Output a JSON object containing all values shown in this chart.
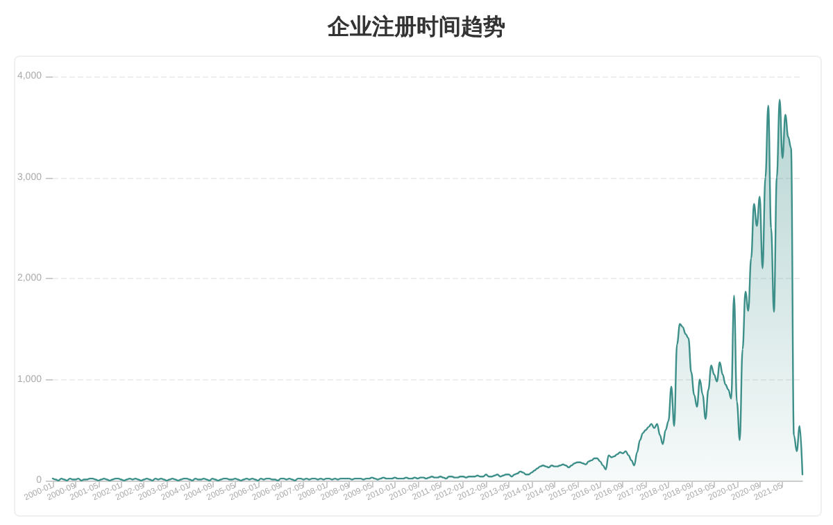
{
  "chart_data": {
    "type": "area",
    "title": "企业注册时间趋势",
    "categories": [
      "2000-01",
      null,
      null,
      null,
      null,
      null,
      null,
      null,
      "2000-09",
      null,
      null,
      null,
      null,
      null,
      null,
      null,
      "2001-05",
      null,
      null,
      null,
      null,
      null,
      null,
      null,
      "2002-01",
      null,
      null,
      null,
      null,
      null,
      null,
      null,
      "2002-09",
      null,
      null,
      null,
      null,
      null,
      null,
      null,
      "2003-05",
      null,
      null,
      null,
      null,
      null,
      null,
      null,
      "2004-01",
      null,
      null,
      null,
      null,
      null,
      null,
      null,
      "2004-09",
      null,
      null,
      null,
      null,
      null,
      null,
      null,
      "2005-05",
      null,
      null,
      null,
      null,
      null,
      null,
      null,
      "2006-01",
      null,
      null,
      null,
      null,
      null,
      null,
      null,
      "2006-09",
      null,
      null,
      null,
      null,
      null,
      null,
      null,
      "2007-05",
      null,
      null,
      null,
      null,
      null,
      null,
      null,
      "2008-01",
      null,
      null,
      null,
      null,
      null,
      null,
      null,
      "2008-09",
      null,
      null,
      null,
      null,
      null,
      null,
      null,
      "2009-05",
      null,
      null,
      null,
      null,
      null,
      null,
      null,
      "2010-01",
      null,
      null,
      null,
      null,
      null,
      null,
      null,
      "2010-09",
      null,
      null,
      null,
      null,
      null,
      null,
      null,
      "2011-05",
      null,
      null,
      null,
      null,
      null,
      null,
      null,
      "2012-01",
      null,
      null,
      null,
      null,
      null,
      null,
      null,
      "2012-09",
      null,
      null,
      null,
      null,
      null,
      null,
      null,
      "2013-05",
      null,
      null,
      null,
      null,
      null,
      null,
      null,
      "2014-01",
      null,
      null,
      null,
      null,
      null,
      null,
      null,
      "2014-09",
      null,
      null,
      null,
      null,
      null,
      null,
      null,
      "2015-05",
      null,
      null,
      null,
      null,
      null,
      null,
      null,
      "2016-01",
      null,
      null,
      null,
      null,
      null,
      null,
      null,
      "2016-09",
      null,
      null,
      null,
      null,
      null,
      null,
      null,
      "2017-05",
      null,
      null,
      null,
      null,
      null,
      null,
      null,
      "2018-01",
      null,
      null,
      null,
      null,
      null,
      null,
      null,
      "2018-09",
      null,
      null,
      null,
      null,
      null,
      null,
      null,
      "2019-05",
      null,
      null,
      null,
      null,
      null,
      null,
      null,
      "2020-01",
      null,
      null,
      null,
      null,
      null,
      null,
      null,
      "2020-09",
      null,
      null,
      null,
      null,
      null,
      null,
      null,
      "2021-05",
      null,
      null,
      null,
      null,
      null,
      null,
      null
    ],
    "series": [
      {
        "color": "#3d8f89",
        "values": [
          20,
          10,
          0,
          20,
          10,
          0,
          20,
          10,
          10,
          20,
          0,
          10,
          10,
          20,
          20,
          10,
          0,
          10,
          20,
          10,
          0,
          10,
          20,
          20,
          10,
          0,
          10,
          20,
          10,
          20,
          10,
          0,
          10,
          20,
          10,
          0,
          20,
          10,
          20,
          10,
          0,
          10,
          20,
          10,
          0,
          10,
          20,
          20,
          10,
          0,
          20,
          10,
          10,
          20,
          10,
          0,
          20,
          10,
          0,
          10,
          20,
          20,
          10,
          10,
          20,
          10,
          0,
          10,
          20,
          10,
          20,
          10,
          0,
          20,
          10,
          20,
          20,
          10,
          10,
          0,
          20,
          20,
          10,
          20,
          10,
          0,
          20,
          20,
          10,
          20,
          10,
          20,
          20,
          10,
          20,
          10,
          20,
          20,
          10,
          20,
          10,
          20,
          20,
          20,
          20,
          10,
          20,
          20,
          20,
          10,
          20,
          20,
          30,
          20,
          10,
          20,
          30,
          20,
          20,
          20,
          30,
          20,
          20,
          20,
          30,
          20,
          20,
          30,
          20,
          30,
          30,
          20,
          30,
          40,
          30,
          30,
          40,
          30,
          20,
          40,
          40,
          30,
          30,
          40,
          40,
          30,
          40,
          40,
          40,
          50,
          40,
          40,
          60,
          40,
          40,
          50,
          60,
          40,
          50,
          60,
          60,
          40,
          60,
          70,
          90,
          80,
          60,
          60,
          80,
          100,
          120,
          140,
          150,
          140,
          130,
          150,
          140,
          140,
          150,
          160,
          150,
          130,
          150,
          170,
          180,
          180,
          170,
          160,
          190,
          200,
          220,
          220,
          190,
          150,
          110,
          250,
          230,
          240,
          260,
          280,
          270,
          290,
          250,
          200,
          150,
          280,
          400,
          470,
          500,
          530,
          560,
          520,
          560,
          450,
          360,
          500,
          590,
          930,
          540,
          1350,
          1550,
          1520,
          1450,
          1410,
          1070,
          850,
          730,
          1000,
          850,
          610,
          900,
          1140,
          1050,
          980,
          1170,
          1050,
          950,
          900,
          810,
          1830,
          780,
          400,
          1300,
          1870,
          1680,
          2200,
          2740,
          2520,
          2810,
          2100,
          3000,
          3710,
          2500,
          1670,
          3000,
          3770,
          3190,
          3620,
          3400,
          3290,
          450,
          290,
          540,
          60
        ]
      }
    ],
    "ylim": [
      0,
      4000
    ],
    "yticks": [
      0,
      {
        "value": 1000,
        "label": "1,000"
      },
      {
        "value": 2000,
        "label": "2,000"
      },
      {
        "value": 3000,
        "label": "3,000"
      },
      {
        "value": 4000,
        "label": "4,000"
      }
    ],
    "grid": "y",
    "line_style": "solid"
  }
}
